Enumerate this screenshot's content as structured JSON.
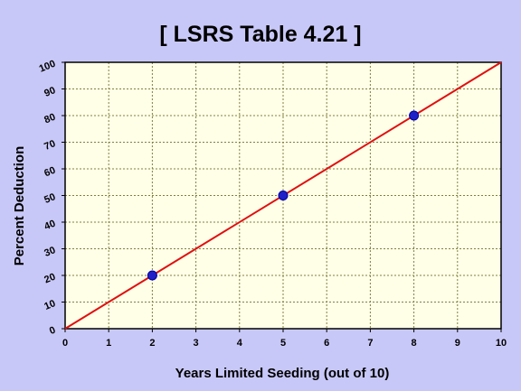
{
  "chart_data": {
    "type": "scatter",
    "title": "[ LSRS Table 4.21 ]",
    "xlabel": "Years Limited Seeding (out of 10)",
    "ylabel": "Percent Deduction",
    "xlim": [
      0,
      10
    ],
    "ylim": [
      0,
      100
    ],
    "x_ticks": [
      "0",
      "1",
      "2",
      "3",
      "4",
      "5",
      "6",
      "7",
      "8",
      "9",
      "10"
    ],
    "y_ticks": [
      "0",
      "10",
      "20",
      "30",
      "40",
      "50",
      "60",
      "70",
      "80",
      "90",
      "100"
    ],
    "grid": true,
    "series": [
      {
        "type": "scatter",
        "x": [
          2,
          5,
          8
        ],
        "y": [
          20,
          50,
          80
        ],
        "color": "#2020c8"
      },
      {
        "type": "line",
        "x": [
          0,
          10
        ],
        "y": [
          0,
          100
        ],
        "color": "#e01010"
      }
    ]
  },
  "colors": {
    "background": "#c8c8f8",
    "plot_area": "#ffffe8",
    "grid": "#808040"
  }
}
